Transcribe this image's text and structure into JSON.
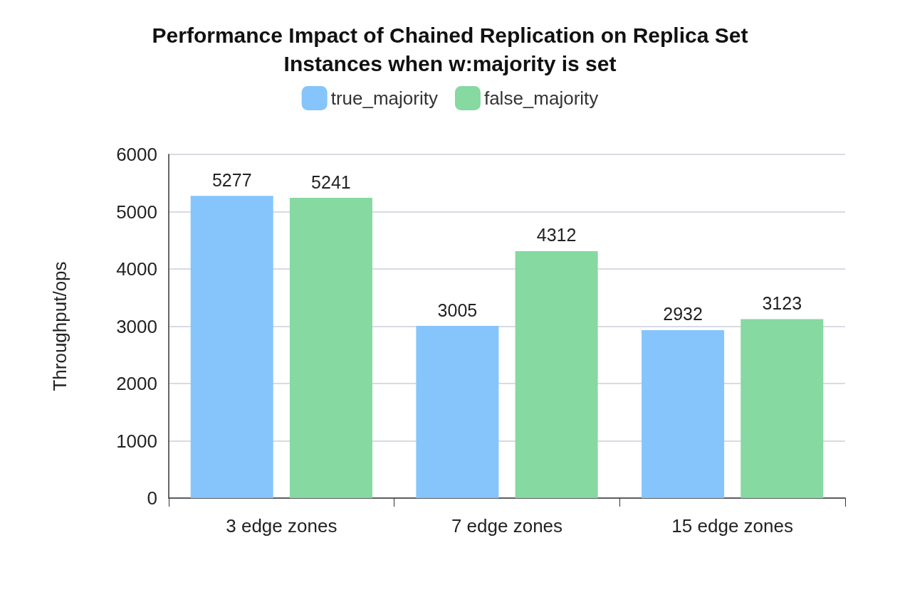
{
  "chart_data": {
    "type": "bar",
    "title": "Performance Impact of Chained Replication on Replica Set\nInstances when w:majority is set",
    "ylabel": "Throughput/ops",
    "categories": [
      "3 edge zones",
      "7 edge zones",
      "15 edge zones"
    ],
    "series": [
      {
        "name": "true_majority",
        "color": "#85c5fb",
        "values": [
          5277,
          3005,
          2932
        ]
      },
      {
        "name": "false_majority",
        "color": "#85d9a1",
        "values": [
          5241,
          4312,
          3123
        ]
      }
    ],
    "ylim": [
      0,
      6000
    ],
    "yticks": [
      0,
      1000,
      2000,
      3000,
      4000,
      5000,
      6000
    ],
    "grid": "y",
    "legend": "top",
    "data_labels": true
  }
}
